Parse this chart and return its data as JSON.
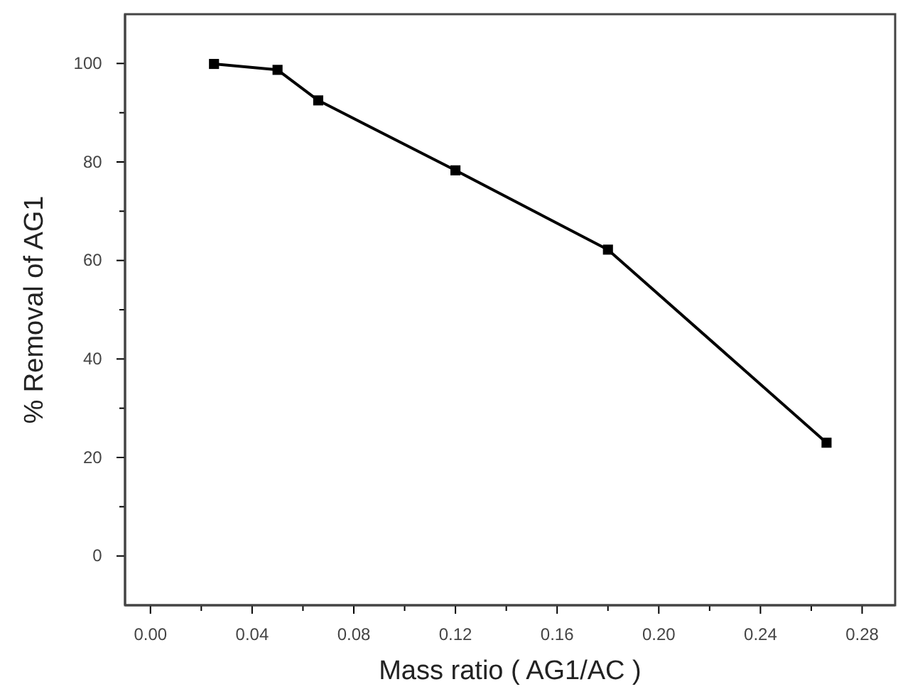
{
  "chart_data": {
    "type": "line",
    "xlabel": "Mass ratio ( AG1/AC )",
    "ylabel": "% Removal of AG1",
    "x": [
      0.025,
      0.05,
      0.066,
      0.12,
      0.18,
      0.266
    ],
    "series": [
      {
        "color": "#000000",
        "values": [
          99.9,
          98.7,
          92.5,
          78.3,
          62.2,
          23.0
        ]
      }
    ],
    "xlim": [
      -0.01,
      0.293
    ],
    "ylim": [
      -10,
      110
    ],
    "xticks": [
      {
        "value": 0,
        "label": "0.00"
      },
      {
        "value": 0.02,
        "label": null
      },
      {
        "value": 0.04,
        "label": "0.04"
      },
      {
        "value": 0.06,
        "label": null
      },
      {
        "value": 0.08,
        "label": "0.08"
      },
      {
        "value": 0.1,
        "label": null
      },
      {
        "value": 0.12,
        "label": "0.12"
      },
      {
        "value": 0.14,
        "label": null
      },
      {
        "value": 0.16,
        "label": "0.16"
      },
      {
        "value": 0.18,
        "label": null
      },
      {
        "value": 0.2,
        "label": "0.20"
      },
      {
        "value": 0.22,
        "label": null
      },
      {
        "value": 0.24,
        "label": "0.24"
      },
      {
        "value": 0.26,
        "label": null
      },
      {
        "value": 0.28,
        "label": "0.28"
      }
    ],
    "yticks": [
      0,
      {
        "value": 10,
        "label": null
      },
      20,
      {
        "value": 30,
        "label": null
      },
      40,
      {
        "value": 50,
        "label": null
      },
      60,
      {
        "value": 70,
        "label": null
      },
      80,
      {
        "value": 90,
        "label": null
      },
      100
    ],
    "marker": "square",
    "line_style": "solid",
    "grid": false
  }
}
